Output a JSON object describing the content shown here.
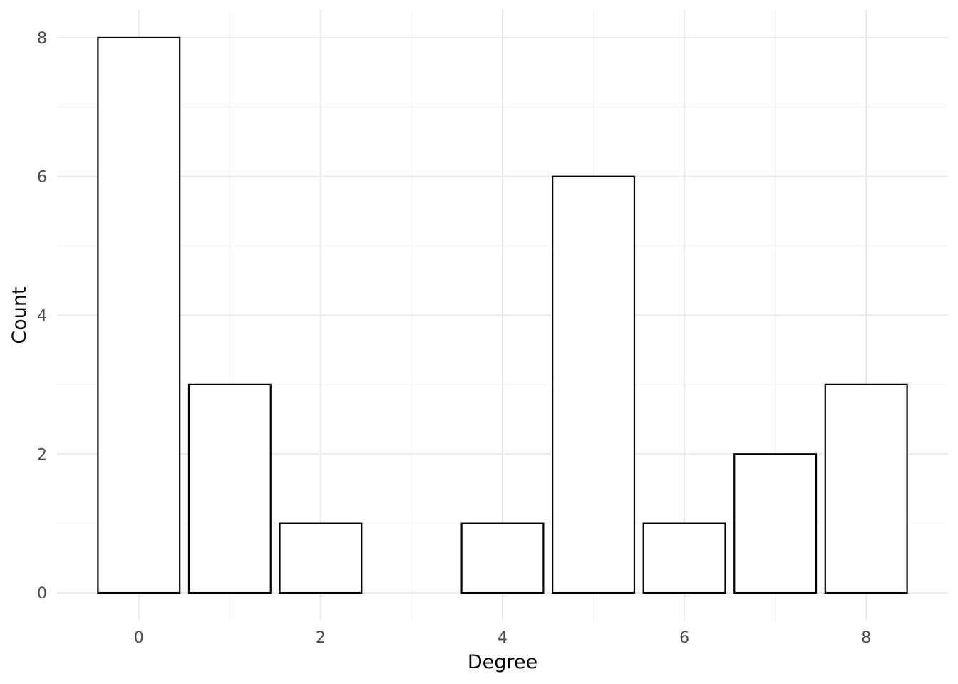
{
  "chart_data": {
    "type": "bar",
    "xlabel": "Degree",
    "ylabel": "Count",
    "x": [
      0,
      1,
      2,
      3,
      4,
      5,
      6,
      7,
      8
    ],
    "values": [
      8,
      3,
      1,
      0,
      1,
      6,
      1,
      2,
      3
    ],
    "xlim": [
      -0.9,
      8.9
    ],
    "ylim": [
      -0.4,
      8.4
    ],
    "x_ticks": [
      "0",
      "2",
      "4",
      "6",
      "8"
    ],
    "y_ticks": [
      "0",
      "2",
      "4",
      "6",
      "8"
    ],
    "grid": true,
    "legend": "none",
    "colors": {
      "bar_fill": "#ffffff",
      "bar_outline": "#000000",
      "grid": "#ebebeb",
      "tick_text": "#4d4d4d",
      "title_text": "#000000"
    }
  }
}
